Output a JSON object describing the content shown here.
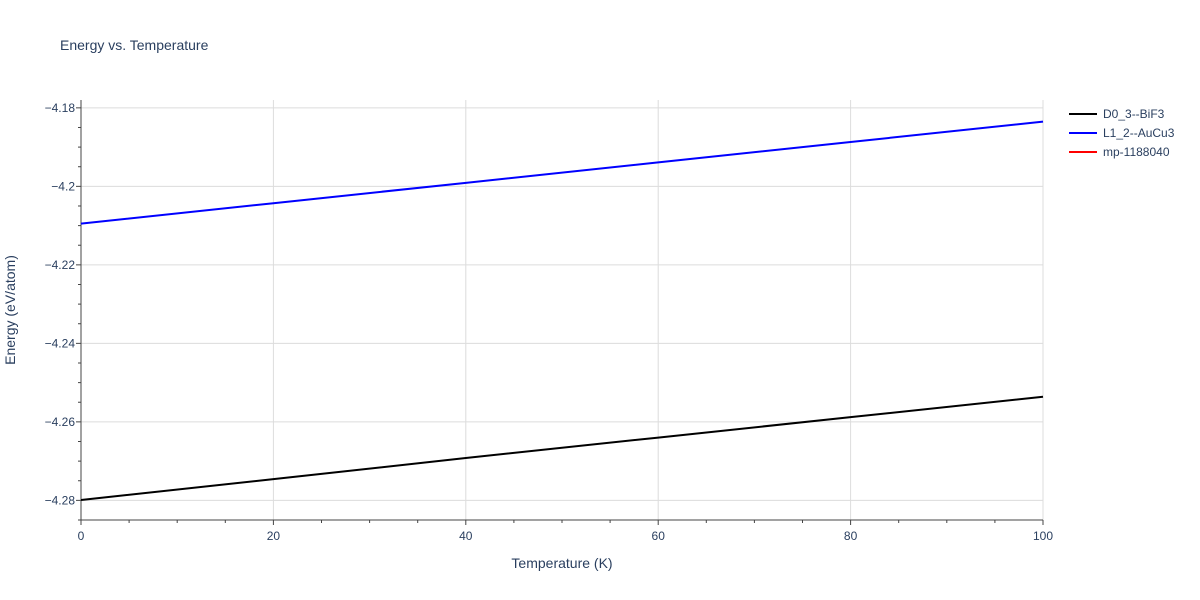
{
  "chart_data": {
    "type": "line",
    "title": "Energy vs. Temperature",
    "xlabel": "Temperature (K)",
    "ylabel": "Energy (eV/atom)",
    "xlim": [
      0,
      100
    ],
    "ylim": [
      -4.285,
      -4.178
    ],
    "x_ticks": [
      0,
      20,
      40,
      60,
      80,
      100
    ],
    "x_minor_tick_step": 5,
    "y_ticks": [
      -4.28,
      -4.26,
      -4.24,
      -4.22,
      -4.2,
      -4.18
    ],
    "y_tick_labels": [
      "−4.28",
      "−4.26",
      "−4.24",
      "−4.22",
      "−4.2",
      "−4.18"
    ],
    "grid": true,
    "legend_position": "right",
    "series": [
      {
        "name": "D0_3--BiF3",
        "color": "#000000",
        "x": [
          0,
          20,
          40,
          60,
          80,
          100
        ],
        "y": [
          -4.2799,
          -4.2746,
          -4.2692,
          -4.264,
          -4.2588,
          -4.2536
        ]
      },
      {
        "name": "L1_2--AuCu3",
        "color": "#0000ff",
        "x": [
          0,
          20,
          40,
          60,
          80,
          100
        ],
        "y": [
          -4.2095,
          -4.2043,
          -4.1991,
          -4.1939,
          -4.1887,
          -4.1835
        ]
      },
      {
        "name": "mp-1188040",
        "color": "#ff0000",
        "x": [],
        "y": []
      }
    ]
  }
}
